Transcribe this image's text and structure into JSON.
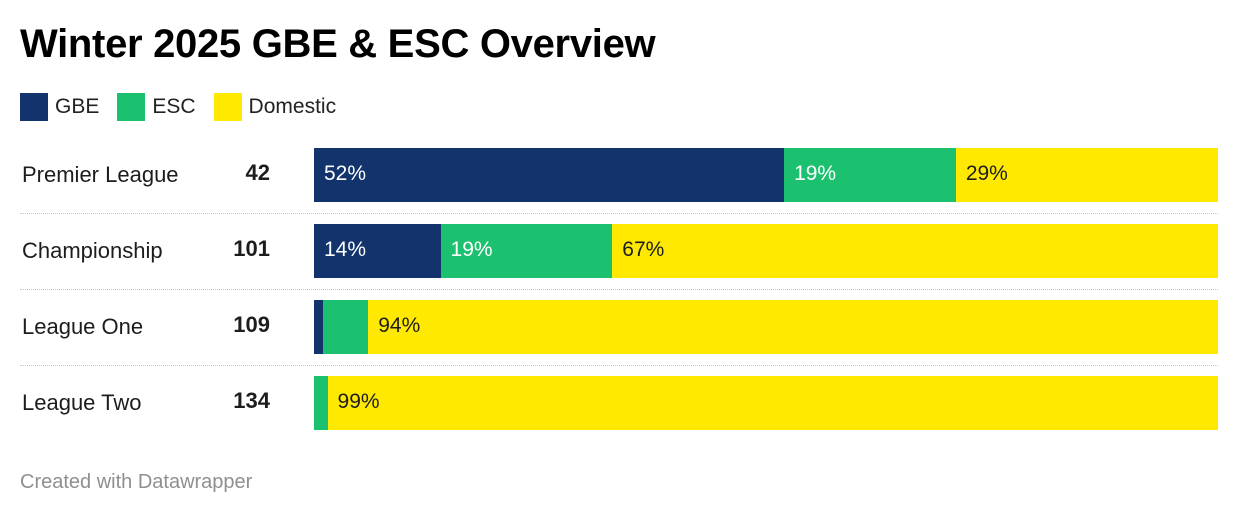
{
  "chart_data": {
    "type": "bar",
    "orientation": "horizontal",
    "stacked": true,
    "normalized": true,
    "title": "Winter 2025 GBE & ESC Overview",
    "legend": {
      "placement": "top-left"
    },
    "categories": [
      "Premier League",
      "Championship",
      "League One",
      "League Two"
    ],
    "totals": [
      "42",
      "101",
      "109",
      "134"
    ],
    "series": [
      {
        "name": "GBE",
        "color": "#12336b",
        "label_color": "#ffffff",
        "values": [
          52,
          14,
          1,
          0
        ],
        "labels": [
          "52%",
          "14%",
          "",
          ""
        ]
      },
      {
        "name": "ESC",
        "color": "#1cc16f",
        "label_color": "#ffffff",
        "values": [
          19,
          19,
          5,
          1.5
        ],
        "labels": [
          "19%",
          "19%",
          "",
          ""
        ]
      },
      {
        "name": "Domestic",
        "color": "#ffe900",
        "label_color": "#1d1d1d",
        "values": [
          29,
          67,
          94,
          98.5
        ],
        "labels": [
          "29%",
          "67%",
          "94%",
          "99%"
        ]
      }
    ],
    "xlim": [
      0,
      100
    ]
  },
  "footer": "Created with Datawrapper"
}
